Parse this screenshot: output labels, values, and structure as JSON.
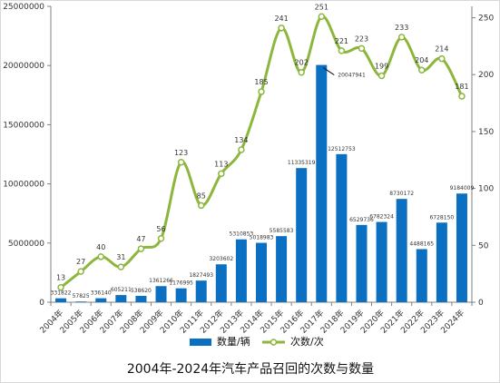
{
  "chart_data": {
    "type": "bar",
    "title": "2004年-2024年汽车产品召回的次数与数量",
    "categories": [
      "2004年",
      "2005年",
      "2006年",
      "2007年",
      "2008年",
      "2009年",
      "2010年",
      "2011年",
      "2012年",
      "2013年",
      "2014年",
      "2015年",
      "2016年",
      "2017年",
      "2018年",
      "2019年",
      "2020年",
      "2021年",
      "2022年",
      "2023年",
      "2024年"
    ],
    "series": [
      {
        "name": "数量/辆",
        "type": "bar",
        "axis": "left",
        "color": "#0B6FC2",
        "values": [
          331822,
          57825,
          336140,
          605211,
          538620,
          1361266,
          1176995,
          1827493,
          3203602,
          5310853,
          5018983,
          5585583,
          11335319,
          20047941,
          12512753,
          6529736,
          6782324,
          8730172,
          4488165,
          6728150,
          9184009
        ],
        "labels": [
          "331822",
          "57825",
          "336140",
          "605211",
          "538620",
          "1361266",
          "1176995",
          "1827493",
          "3203602",
          "5310853",
          "5018983",
          "5585583",
          "11335319",
          "20047941",
          "12512753",
          "6529736",
          "6782324",
          "8730172",
          "4488165",
          "6728150",
          "9184009"
        ]
      },
      {
        "name": "次数/次",
        "type": "line",
        "axis": "right",
        "color": "#8CB63C",
        "values": [
          13,
          27,
          40,
          31,
          47,
          56,
          123,
          85,
          113,
          134,
          185,
          241,
          202,
          251,
          221,
          223,
          199,
          233,
          204,
          214,
          181
        ],
        "labels": [
          "13",
          "27",
          "40",
          "31",
          "47",
          "56",
          "123",
          "85",
          "113",
          "134",
          "185",
          "241",
          "202",
          "251",
          "221",
          "223",
          "199",
          "233",
          "204",
          "214",
          "181"
        ]
      }
    ],
    "left_axis": {
      "min": 0,
      "max": 25000000,
      "ticks": [
        0,
        5000000,
        10000000,
        15000000,
        20000000,
        25000000
      ],
      "tick_labels": [
        "0",
        "5000000",
        "10000000",
        "15000000",
        "20000000",
        "25000000"
      ]
    },
    "right_axis": {
      "min": 0,
      "max": 260,
      "ticks": [
        0,
        50,
        100,
        150,
        200,
        250
      ],
      "tick_labels": [
        "0",
        "50",
        "100",
        "150",
        "200",
        "250"
      ]
    },
    "legend_position": "bottom-center",
    "grid": false
  }
}
